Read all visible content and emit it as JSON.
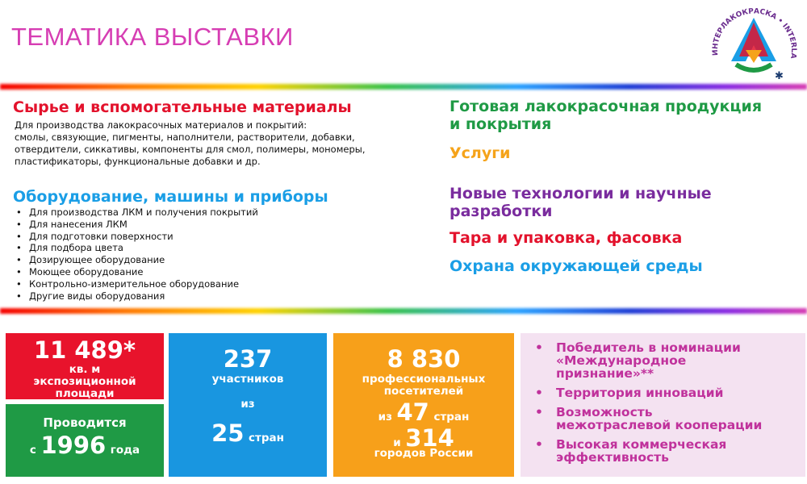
{
  "title": "ТЕМАТИКА ВЫСТАВКИ",
  "logo": {
    "ring_text": "ИНТЕРЛАКОКРАСКА • INTERLAKOKRASKA"
  },
  "left": {
    "raw": {
      "title": "Сырье и вспомогательные материалы",
      "desc": [
        "Для производства лакокрасочных материалов и покрытий:",
        "смолы, связующие, пигменты, наполнители, растворители, добавки,",
        "отвердители, сиккативы, компоненты для смол, полимеры, мономеры,",
        "пластификаторы, функциональные добавки и др."
      ]
    },
    "equipment": {
      "title": "Оборудование, машины и приборы",
      "items": [
        "Для производства ЛКМ и получения покрытий",
        "Для нанесения ЛКМ",
        "Для подготовки поверхности",
        "Для подбора цвета",
        "Дозирующее оборудование",
        "Моющее оборудование",
        "Контрольно-измерительное оборудование",
        "Другие виды оборудования"
      ]
    }
  },
  "right": {
    "c1": [
      "Готовая лакокрасочная продукция",
      "и покрытия"
    ],
    "c2": "Услуги",
    "c3": [
      "Новые технологии и научные",
      "разработки"
    ],
    "c4": "Тара и упаковка, фасовка",
    "c5": "Охрана окружающей среды"
  },
  "stats": {
    "area": {
      "value": "11 489*",
      "l1": "кв. м",
      "l2": "экспозиционной",
      "l3": "площади"
    },
    "since": {
      "l1": "Проводится",
      "pre": "с",
      "year": "1996",
      "post": "года"
    },
    "participants": {
      "value": "237",
      "label": "участников",
      "from": "из",
      "countries": "25",
      "countries_label": "стран"
    },
    "visitors": {
      "value": "8 830",
      "l1": "профессиональных",
      "l2": "посетителей",
      "from": "из",
      "countries": "47",
      "countries_label": "стран",
      "and": "и",
      "cities": "314",
      "cities_label": "городов России"
    }
  },
  "highlights": [
    "Победитель в номинации «Международное признание»**",
    "Территория инноваций",
    "Возможность межотраслевой кооперации",
    "Высокая коммерческая эффективность"
  ],
  "highlight_lines": [
    [
      "Победитель в номинации",
      "«Международное",
      "признание»**"
    ],
    [
      "Территория инноваций"
    ],
    [
      "Возможность",
      "межотраслевой кооперации"
    ],
    [
      "Высокая коммерческая",
      "эффективность"
    ]
  ],
  "colors": {
    "title": "#d63db3",
    "red": "#e8132c",
    "green": "#1f9a45",
    "blue": "#1996e0",
    "orange": "#f7a01a",
    "pink_bg": "#f4e2f1",
    "purple": "#7a2c9e"
  }
}
